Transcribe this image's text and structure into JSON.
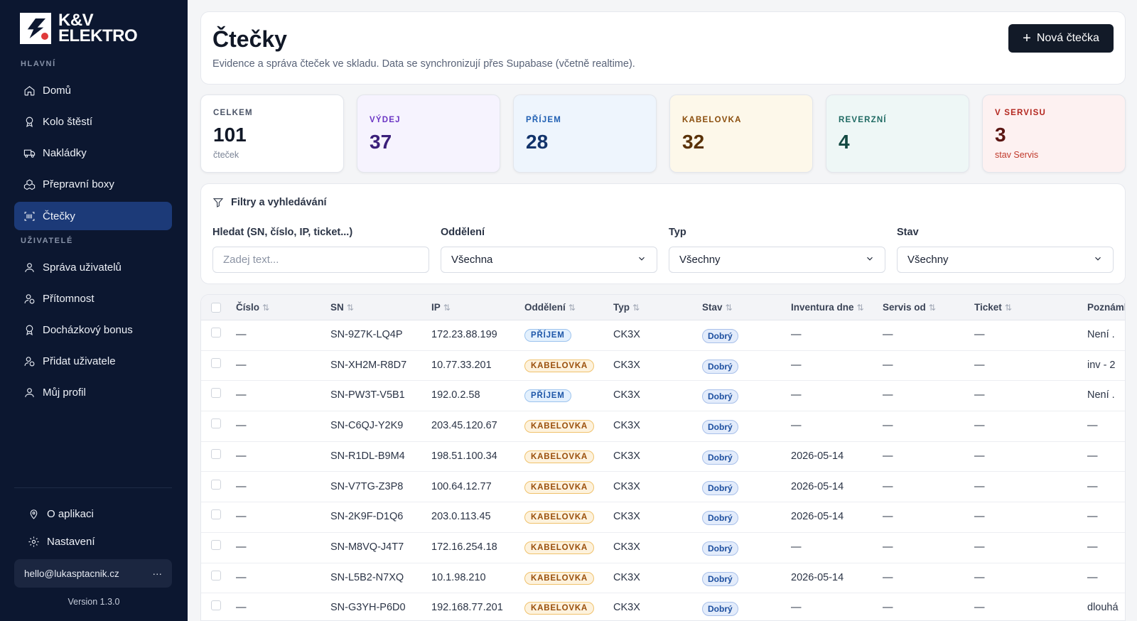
{
  "sidebar": {
    "brand_line1": "K&V",
    "brand_line2": "ELEKTRO",
    "section_main": "HLAVNÍ",
    "section_users": "UŽIVATELÉ",
    "items_main": [
      {
        "label": "Domů",
        "icon": "home-icon"
      },
      {
        "label": "Kolo štěstí",
        "icon": "award-icon"
      },
      {
        "label": "Nakládky",
        "icon": "truck-icon"
      },
      {
        "label": "Přepravní boxy",
        "icon": "boxes-icon"
      },
      {
        "label": "Čtečky",
        "icon": "scanner-icon",
        "active": true
      }
    ],
    "items_users": [
      {
        "label": "Správa uživatelů",
        "icon": "user-icon"
      },
      {
        "label": "Přítomnost",
        "icon": "user-check-icon"
      },
      {
        "label": "Docházkový bonus",
        "icon": "award-icon"
      },
      {
        "label": "Přidat uživatele",
        "icon": "user-plus-icon"
      },
      {
        "label": "Můj profil",
        "icon": "user-icon"
      }
    ],
    "about": "O aplikaci",
    "settings": "Nastavení",
    "user_email": "hello@lukasptacnik.cz",
    "user_menu": "···",
    "version": "Version 1.3.0"
  },
  "header": {
    "title": "Čtečky",
    "subtitle": "Evidence a správa čteček ve skladu. Data se synchronizují přes Supabase (včetně realtime).",
    "new_button": "Nová čtečka"
  },
  "stats": [
    {
      "label": "CELKEM",
      "value": "101",
      "sub": "čteček"
    },
    {
      "label": "VÝDEJ",
      "value": "37",
      "sub": ""
    },
    {
      "label": "PŘÍJEM",
      "value": "28",
      "sub": ""
    },
    {
      "label": "KABELOVKA",
      "value": "32",
      "sub": ""
    },
    {
      "label": "REVERZNÍ",
      "value": "4",
      "sub": ""
    },
    {
      "label": "V SERVISU",
      "value": "3",
      "sub": "stav Servis"
    }
  ],
  "filters": {
    "title": "Filtry a vyhledávání",
    "search_label": "Hledat (SN, číslo, IP, ticket...)",
    "search_placeholder": "Zadej text...",
    "dept_label": "Oddělení",
    "dept_value": "Všechna",
    "type_label": "Typ",
    "type_value": "Všechny",
    "state_label": "Stav",
    "state_value": "Všechny"
  },
  "table": {
    "columns": [
      "Číslo",
      "SN",
      "IP",
      "Oddělení",
      "Typ",
      "Stav",
      "Inventura dne",
      "Servis od",
      "Ticket",
      "Poznáml"
    ],
    "sort_glyph": "⇅",
    "rows": [
      {
        "cislo": "—",
        "sn": "SN-9Z7K-LQ4P",
        "ip": "172.23.88.199",
        "dept": "PŘÍJEM",
        "typ": "CK3X",
        "stav": "Dobrý",
        "inv": "—",
        "servis": "—",
        "ticket": "—",
        "note": "Není ."
      },
      {
        "cislo": "—",
        "sn": "SN-XH2M-R8D7",
        "ip": "10.77.33.201",
        "dept": "KABELOVKA",
        "typ": "CK3X",
        "stav": "Dobrý",
        "inv": "—",
        "servis": "—",
        "ticket": "—",
        "note": "inv - 2"
      },
      {
        "cislo": "—",
        "sn": "SN-PW3T-V5B1",
        "ip": "192.0.2.58",
        "dept": "PŘÍJEM",
        "typ": "CK3X",
        "stav": "Dobrý",
        "inv": "—",
        "servis": "—",
        "ticket": "—",
        "note": "Není ."
      },
      {
        "cislo": "—",
        "sn": "SN-C6QJ-Y2K9",
        "ip": "203.45.120.67",
        "dept": "KABELOVKA",
        "typ": "CK3X",
        "stav": "Dobrý",
        "inv": "—",
        "servis": "—",
        "ticket": "—",
        "note": "—"
      },
      {
        "cislo": "—",
        "sn": "SN-R1DL-B9M4",
        "ip": "198.51.100.34",
        "dept": "KABELOVKA",
        "typ": "CK3X",
        "stav": "Dobrý",
        "inv": "2026-05-14",
        "servis": "—",
        "ticket": "—",
        "note": "—"
      },
      {
        "cislo": "—",
        "sn": "SN-V7TG-Z3P8",
        "ip": "100.64.12.77",
        "dept": "KABELOVKA",
        "typ": "CK3X",
        "stav": "Dobrý",
        "inv": "2026-05-14",
        "servis": "—",
        "ticket": "—",
        "note": "—"
      },
      {
        "cislo": "—",
        "sn": "SN-2K9F-D1Q6",
        "ip": "203.0.113.45",
        "dept": "KABELOVKA",
        "typ": "CK3X",
        "stav": "Dobrý",
        "inv": "2026-05-14",
        "servis": "—",
        "ticket": "—",
        "note": "—"
      },
      {
        "cislo": "—",
        "sn": "SN-M8VQ-J4T7",
        "ip": "172.16.254.18",
        "dept": "KABELOVKA",
        "typ": "CK3X",
        "stav": "Dobrý",
        "inv": "—",
        "servis": "—",
        "ticket": "—",
        "note": "—"
      },
      {
        "cislo": "—",
        "sn": "SN-L5B2-N7XQ",
        "ip": "10.1.98.210",
        "dept": "KABELOVKA",
        "typ": "CK3X",
        "stav": "Dobrý",
        "inv": "2026-05-14",
        "servis": "—",
        "ticket": "—",
        "note": "—"
      },
      {
        "cislo": "—",
        "sn": "SN-G3YH-P6D0",
        "ip": "192.168.77.201",
        "dept": "KABELOVKA",
        "typ": "CK3X",
        "stav": "Dobrý",
        "inv": "—",
        "servis": "—",
        "ticket": "—",
        "note": "dlouhá"
      }
    ]
  },
  "colors": {
    "sidebar_bg": "#0c1730",
    "active_item": "#1c3a78",
    "accent_dark": "#121a28",
    "vydej_tint": "#f6f3fe",
    "prijem_tint": "#eef5fd",
    "kabelovka_tint": "#fdf8ea",
    "reverzni_tint": "#eef7f6",
    "servis_tint": "#fdf1f1"
  }
}
